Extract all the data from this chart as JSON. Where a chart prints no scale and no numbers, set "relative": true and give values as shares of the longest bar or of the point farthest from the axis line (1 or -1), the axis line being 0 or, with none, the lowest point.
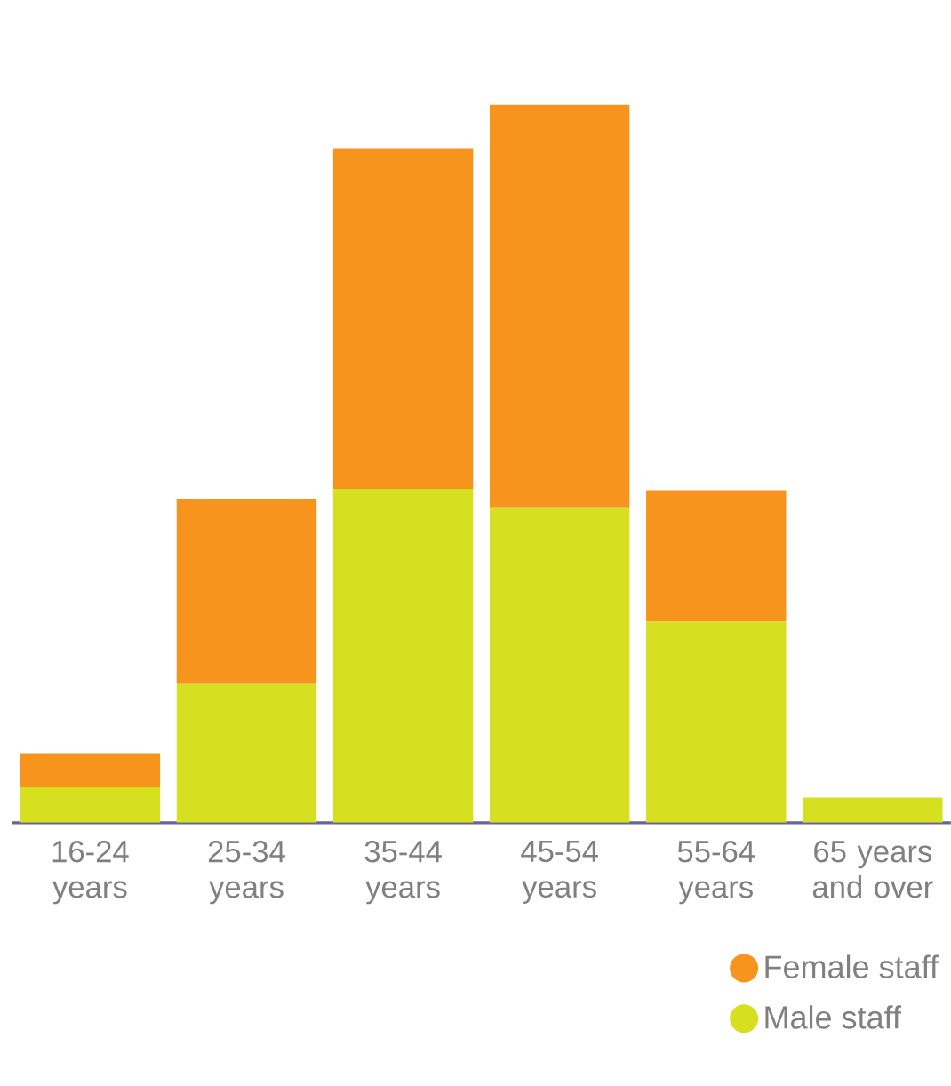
{
  "chart_data": {
    "type": "bar",
    "stacked": true,
    "relative": true,
    "categories": [
      "16-24 years",
      "25-34 years",
      "35-44 years",
      "45-54 years",
      "55-64 years",
      "65 years and over"
    ],
    "series": [
      {
        "name": "Male staff",
        "color": "#d6df20",
        "values": [
          0.05,
          0.193,
          0.465,
          0.438,
          0.28,
          0.035
        ]
      },
      {
        "name": "Female staff",
        "color": "#f7941d",
        "values": [
          0.047,
          0.257,
          0.473,
          0.562,
          0.183,
          null
        ]
      }
    ],
    "legend": "bottom right"
  }
}
